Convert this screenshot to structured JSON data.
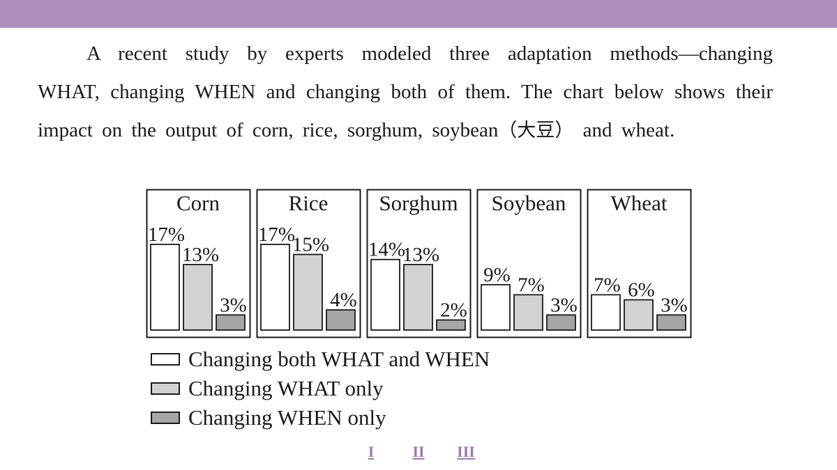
{
  "intro": {
    "part1": "A recent study by experts modeled three adaptation methods—changing WHAT, changing WHEN and changing both of them. The chart below shows their impact on the output of corn, rice, sorghum, soybean",
    "chinese": "（大豆）",
    "part2": " and wheat."
  },
  "chart_data": {
    "type": "bar",
    "categories": [
      "Corn",
      "Rice",
      "Sorghum",
      "Soybean",
      "Wheat"
    ],
    "series": [
      {
        "name": "Changing both WHAT and WHEN",
        "values": [
          17,
          17,
          14,
          9,
          7
        ],
        "labels": [
          "17%",
          "17%",
          "14%",
          "9%",
          "7%"
        ],
        "color": "#ffffff"
      },
      {
        "name": "Changing WHAT only",
        "values": [
          13,
          15,
          13,
          7,
          6
        ],
        "labels": [
          "13%",
          "15%",
          "13%",
          "7%",
          "6%"
        ],
        "color": "#d2d2d2"
      },
      {
        "name": "Changing WHEN only",
        "values": [
          3,
          4,
          2,
          3,
          3
        ],
        "labels": [
          "3%",
          "4%",
          "2%",
          "3%",
          "3%"
        ],
        "color": "#a6a6a6"
      }
    ],
    "unit": "%",
    "ylim": [
      0,
      17
    ],
    "grid": false,
    "legend_position": "bottom-left"
  },
  "nav": {
    "items": [
      {
        "label": "I"
      },
      {
        "label": "II"
      },
      {
        "label": "III"
      }
    ]
  }
}
